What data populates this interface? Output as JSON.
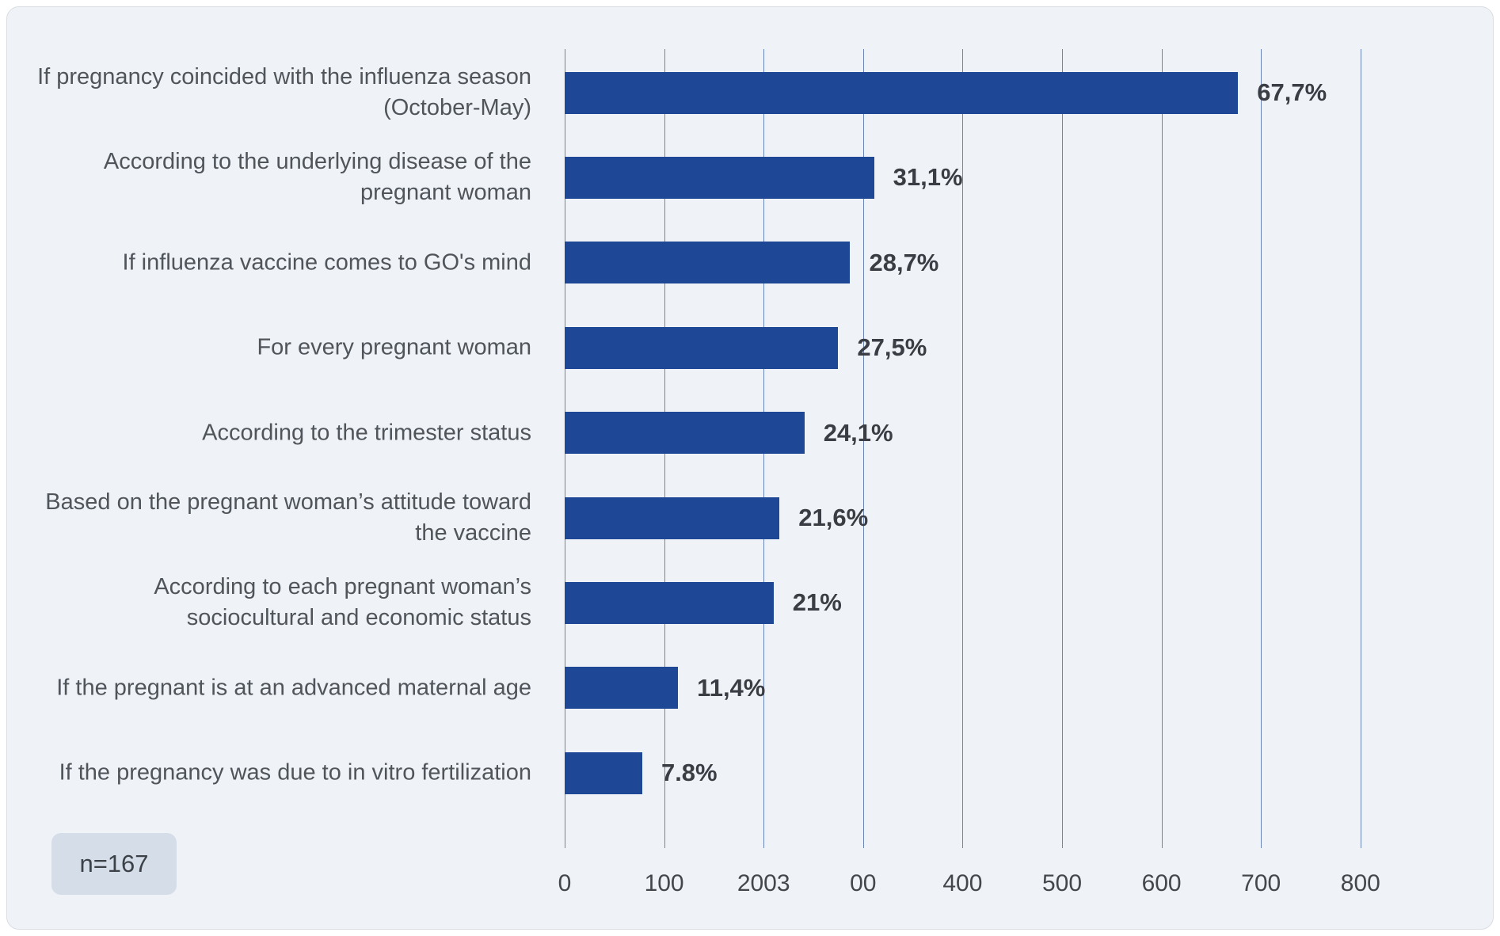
{
  "panel": {
    "background_color": "#eff3f8",
    "bar_color": "#1e4795",
    "gridline_color": "#6a85b6"
  },
  "chart_data": {
    "type": "bar",
    "orientation": "horizontal",
    "title": "",
    "categories": [
      "If pregnancy coincided with the influenza season (October-May)",
      "According to the underlying disease of the pregnant woman",
      "If influenza vaccine comes to GO's mind",
      "For every pregnant woman",
      "According to the trimester status",
      "Based on the pregnant woman’s attitude toward the vaccine",
      "According to each pregnant woman’s sociocultural and economic status",
      "If the pregnant is at an advanced maternal age",
      "If the pregnancy was due to in vitro fertilization"
    ],
    "values_percent": [
      67.7,
      31.1,
      28.7,
      27.5,
      24.1,
      21.6,
      21.0,
      11.4,
      7.8
    ],
    "value_labels": [
      "67,7%",
      "31,1%",
      "28,7%",
      "27,5%",
      "24,1%",
      "21,6%",
      "21%",
      "11,4%",
      "7.8%"
    ],
    "x_tick_labels": [
      "0",
      "100",
      "2003",
      "00",
      "400",
      "500",
      "600",
      "700",
      "800"
    ],
    "xlim": [
      0,
      800
    ],
    "axis_note": "axis units equal percent values multiplied by 10",
    "grid": true,
    "legend": false,
    "xlabel": "",
    "ylabel": ""
  },
  "footnote": {
    "sample_size_label": "n=167"
  }
}
